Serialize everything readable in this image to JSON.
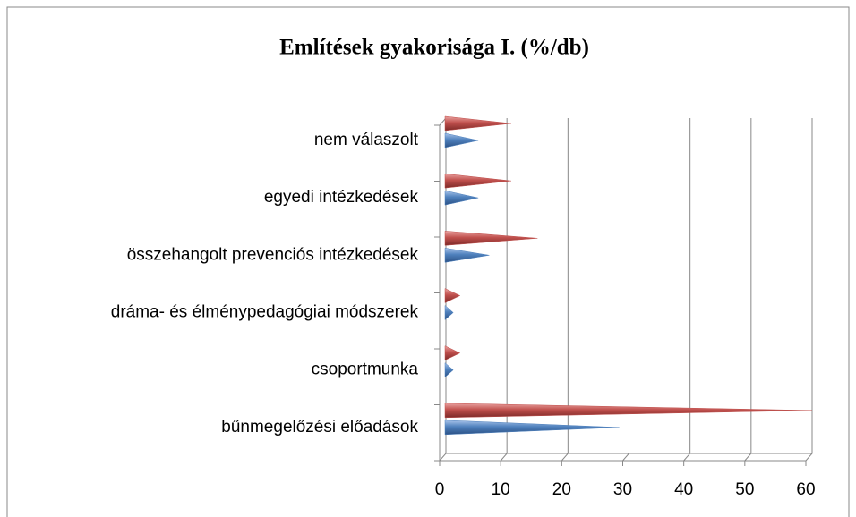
{
  "chart_data": {
    "type": "bar",
    "orientation": "horizontal",
    "title": "Említések gyakorisága I. (%/db)",
    "categories": [
      "nem válaszolt",
      "egyedi intézkedések",
      "összehangolt prevenciós intézkedések",
      "dráma- és élménypedagógiai módszerek",
      "csoportmunka",
      "bűnmegelőzési előadások"
    ],
    "series": [
      {
        "color": "#4f81bd",
        "values": [
          5.3,
          5.3,
          7.1,
          1.2,
          1.2,
          28.4
        ]
      },
      {
        "color": "#c0504d",
        "values": [
          10.7,
          10.7,
          15,
          2.3,
          2.3,
          60
        ]
      }
    ],
    "xlim": [
      0,
      60
    ],
    "xticks": [
      0,
      10,
      20,
      30,
      40,
      50,
      60
    ],
    "grid": true
  }
}
